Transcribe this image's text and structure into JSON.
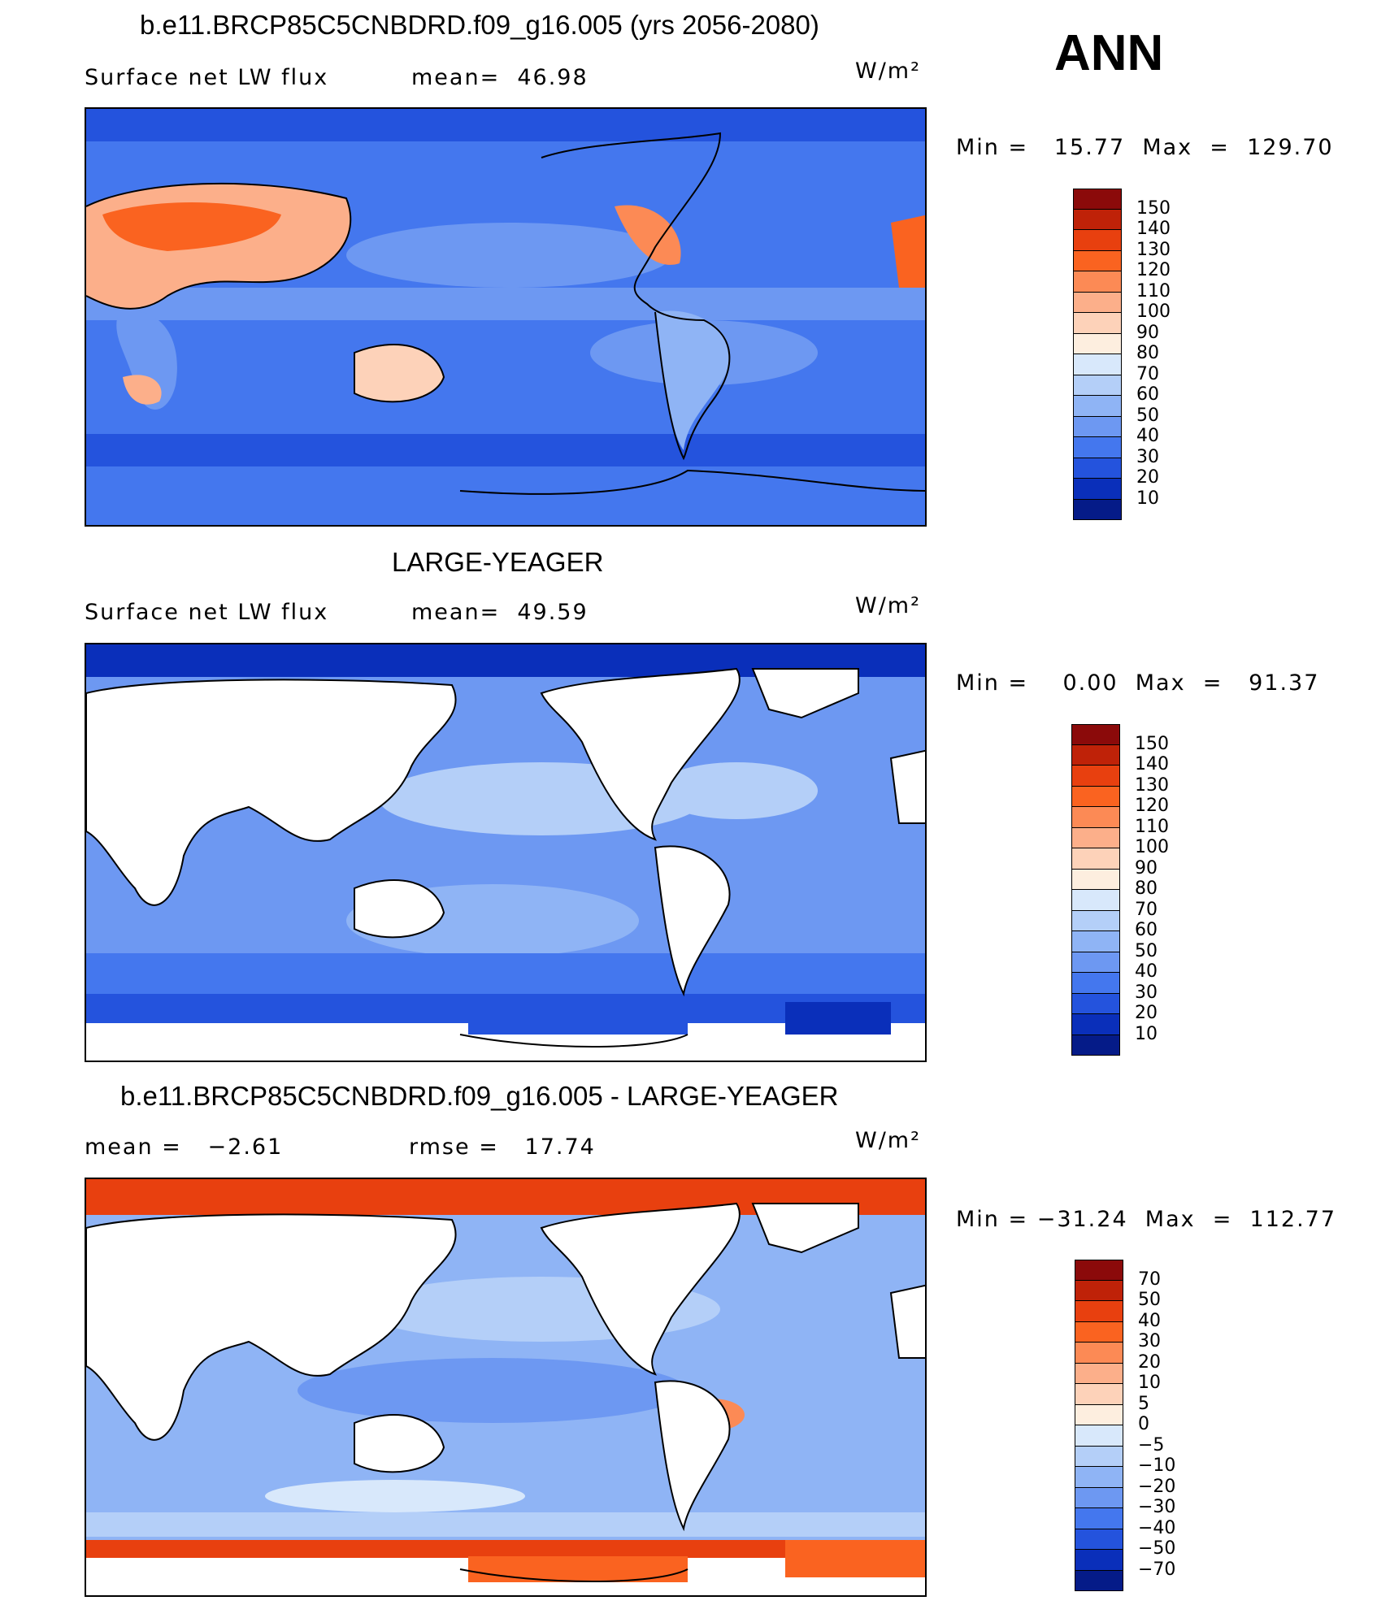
{
  "season": "ANN",
  "panels": [
    {
      "title": "b.e11.BRCP85C5CNBDRD.f09_g16.005 (yrs 2056-2080)",
      "left_label": "Surface net LW flux",
      "mid_label": "mean=  46.98",
      "units": "W/m²",
      "minmax": "Min =   15.77  Max  =  129.70",
      "levels": [
        "150",
        "140",
        "130",
        "120",
        "110",
        "100",
        "90",
        "80",
        "70",
        "60",
        "50",
        "40",
        "30",
        "20",
        "10"
      ],
      "colors": [
        "#8b0a0a",
        "#bf2208",
        "#e8400f",
        "#fa6320",
        "#fc8a55",
        "#fcaf8a",
        "#fdd2b9",
        "#fdeedf",
        "#d8e8fb",
        "#b4cff8",
        "#8fb4f5",
        "#6d98f2",
        "#4477ee",
        "#2453dd",
        "#0a2fba",
        "#051b88"
      ]
    },
    {
      "title": "LARGE-YEAGER",
      "left_label": "Surface net LW flux",
      "mid_label": "mean=  49.59",
      "units": "W/m²",
      "minmax": "Min =    0.00  Max  =   91.37",
      "levels": [
        "150",
        "140",
        "130",
        "120",
        "110",
        "100",
        "90",
        "80",
        "70",
        "60",
        "50",
        "40",
        "30",
        "20",
        "10"
      ],
      "colors": [
        "#8b0a0a",
        "#bf2208",
        "#e8400f",
        "#fa6320",
        "#fc8a55",
        "#fcaf8a",
        "#fdd2b9",
        "#fdeedf",
        "#d8e8fb",
        "#b4cff8",
        "#8fb4f5",
        "#6d98f2",
        "#4477ee",
        "#2453dd",
        "#0a2fba",
        "#051b88"
      ]
    },
    {
      "title": "b.e11.BRCP85C5CNBDRD.f09_g16.005 - LARGE-YEAGER",
      "left_label": "mean =   −2.61",
      "mid_label": "rmse =   17.74",
      "units": "W/m²",
      "minmax": "Min = −31.24  Max  =  112.77",
      "levels": [
        "70",
        "50",
        "40",
        "30",
        "20",
        "10",
        "5",
        "0",
        "−5",
        "−10",
        "−20",
        "−30",
        "−40",
        "−50",
        "−70"
      ],
      "colors": [
        "#8b0a0a",
        "#bf2208",
        "#e8400f",
        "#fa6320",
        "#fc8a55",
        "#fcaf8a",
        "#fdd2b9",
        "#fdeedf",
        "#d8e8fb",
        "#b4cff8",
        "#8fb4f5",
        "#6d98f2",
        "#4477ee",
        "#2453dd",
        "#0a2fba",
        "#051b88"
      ]
    }
  ]
}
